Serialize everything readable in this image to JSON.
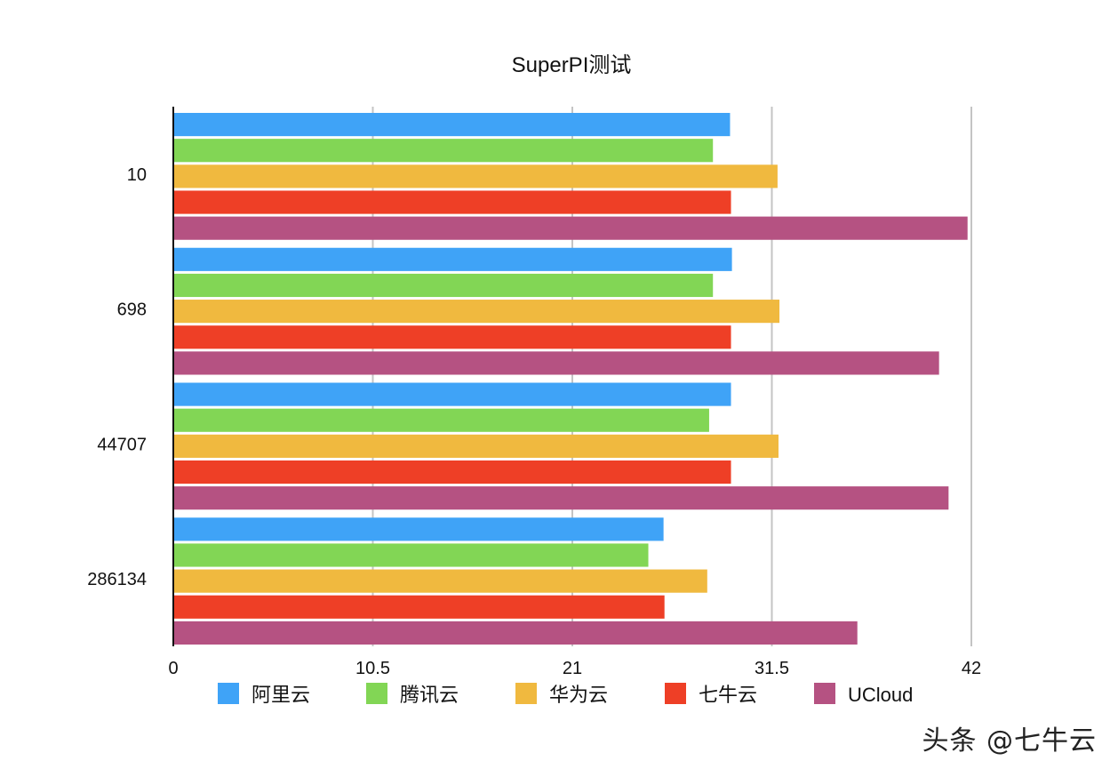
{
  "chart_data": {
    "type": "bar",
    "orientation": "horizontal",
    "title": "SuperPI测试",
    "categories": [
      "10",
      "698",
      "44707",
      "286134"
    ],
    "x_ticks": [
      "0",
      "10.5",
      "21",
      "31.5",
      "42"
    ],
    "xlim": [
      0,
      42
    ],
    "grid": "vertical",
    "legend": "bottom",
    "series": [
      {
        "name": "阿里云",
        "color": "#3fa3f7",
        "values": [
          29.3,
          29.4,
          29.35,
          25.8
        ]
      },
      {
        "name": "腾讯云",
        "color": "#82d655",
        "values": [
          28.4,
          28.4,
          28.2,
          25.0
        ]
      },
      {
        "name": "华为云",
        "color": "#f0b93f",
        "values": [
          31.8,
          31.9,
          31.85,
          28.1
        ]
      },
      {
        "name": "七牛云",
        "color": "#ee3f26",
        "values": [
          29.35,
          29.35,
          29.35,
          25.85
        ]
      },
      {
        "name": "UCloud",
        "color": "#b55282",
        "values": [
          41.8,
          40.3,
          40.8,
          36.0
        ]
      }
    ]
  },
  "watermark": "头条 @七牛云"
}
